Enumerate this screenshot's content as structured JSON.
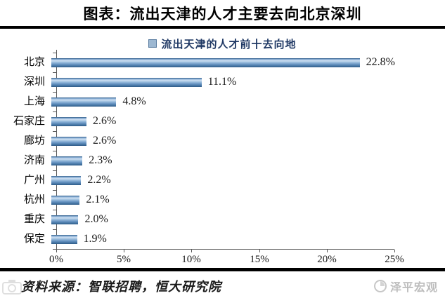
{
  "header": {
    "title": "图表：流出天津的人才主要去向北京深圳"
  },
  "chart_data": {
    "type": "bar",
    "orientation": "horizontal",
    "legend": "流出天津的人才前十去向地",
    "categories": [
      "北京",
      "深圳",
      "上海",
      "石家庄",
      "廊坊",
      "济南",
      "广州",
      "杭州",
      "重庆",
      "保定"
    ],
    "values": [
      22.8,
      11.1,
      4.8,
      2.6,
      2.6,
      2.3,
      2.2,
      2.1,
      2.0,
      1.9
    ],
    "value_labels": [
      "22.8%",
      "11.1%",
      "4.8%",
      "2.6%",
      "2.6%",
      "2.3%",
      "2.2%",
      "2.1%",
      "2.0%",
      "1.9%"
    ],
    "xlim": [
      0,
      25
    ],
    "x_ticks": [
      "0%",
      "5%",
      "10%",
      "15%",
      "20%",
      "25%"
    ],
    "grid": false,
    "legend_position": "top-center",
    "colors": {
      "bar_dark": "#2e5a87",
      "bar_light": "#cfe0f1",
      "bar_mid": "#6592c1",
      "legend_swatch": "#9db8d2",
      "axis": "#595959",
      "legend_text": "#1f3864",
      "rule": "#000000",
      "brand_gray": "#bdbdbd"
    }
  },
  "footer": {
    "source": "资料来源：智联招聘，恒大研究院",
    "brand": "泽平宏观"
  }
}
